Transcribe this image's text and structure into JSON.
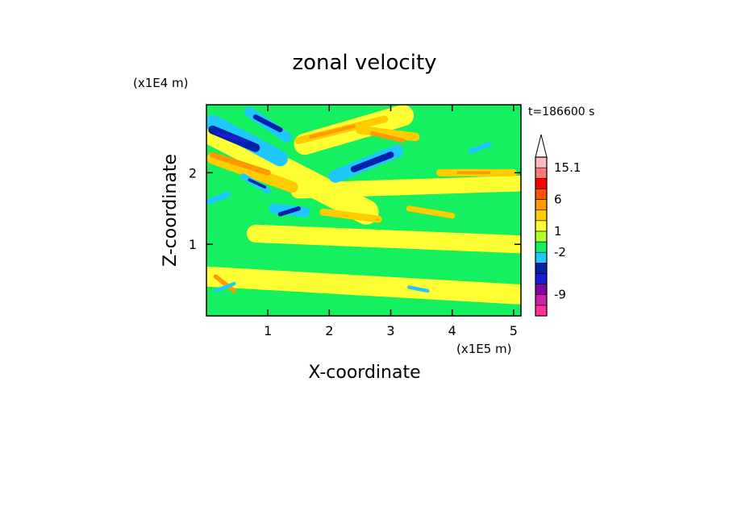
{
  "chart_data": {
    "type": "heatmap",
    "title": "zonal velocity",
    "xlabel": "X-coordinate",
    "ylabel": "Z-coordinate",
    "x_unit": "(x1E5 m)",
    "y_unit": "(x1E4 m)",
    "time_label": "t=186600 s",
    "xlim": [
      0,
      5.12
    ],
    "ylim": [
      0,
      2.95
    ],
    "x_ticks": [
      "1",
      "2",
      "3",
      "4",
      "5"
    ],
    "y_ticks": [
      "1",
      "2"
    ],
    "x_tick_values": [
      1,
      2,
      3,
      4,
      5
    ],
    "y_tick_values": [
      1,
      2
    ],
    "colorbar": {
      "labels": [
        "15.1",
        "6",
        "1",
        "-2",
        "-9"
      ],
      "levels": [
        {
          "color": "#ff3399"
        },
        {
          "color": "#cc22aa"
        },
        {
          "color": "#880099"
        },
        {
          "color": "#1b1bd6"
        },
        {
          "color": "#0022aa"
        },
        {
          "color": "#1ec8ff"
        },
        {
          "color": "#15f060"
        },
        {
          "color": "#b4ff30"
        },
        {
          "color": "#ffff33"
        },
        {
          "color": "#ffcc00"
        },
        {
          "color": "#ff9900"
        },
        {
          "color": "#ff5500"
        },
        {
          "color": "#ff0000"
        },
        {
          "color": "#ff7777"
        },
        {
          "color": "#ffbbbb"
        }
      ]
    },
    "field": {
      "background_color": "#15f060",
      "features": [
        {
          "kind": "band",
          "color": "#ffff33",
          "x0": 0.0,
          "z0": 0.55,
          "x1": 5.1,
          "z1": 0.3,
          "width": 0.28
        },
        {
          "kind": "band",
          "color": "#ffff33",
          "x0": 0.8,
          "z0": 1.15,
          "x1": 5.1,
          "z1": 1.0,
          "width": 0.25
        },
        {
          "kind": "band",
          "color": "#ffff33",
          "x0": 1.5,
          "z0": 1.75,
          "x1": 5.1,
          "z1": 1.85,
          "width": 0.22
        },
        {
          "kind": "band",
          "color": "#ffff33",
          "x0": 0.0,
          "z0": 2.6,
          "x1": 2.6,
          "z1": 1.45,
          "width": 0.35
        },
        {
          "kind": "band",
          "color": "#ffff33",
          "x0": 1.6,
          "z0": 2.4,
          "x1": 3.2,
          "z1": 2.8,
          "width": 0.3
        },
        {
          "kind": "band",
          "color": "#ffcc00",
          "x0": 0.1,
          "z0": 2.2,
          "x1": 1.4,
          "z1": 1.8,
          "width": 0.16
        },
        {
          "kind": "band",
          "color": "#ff9900",
          "x0": 0.1,
          "z0": 2.25,
          "x1": 1.0,
          "z1": 2.0,
          "width": 0.08
        },
        {
          "kind": "band",
          "color": "#ffcc00",
          "x0": 1.5,
          "z0": 2.45,
          "x1": 2.9,
          "z1": 2.75,
          "width": 0.1
        },
        {
          "kind": "band",
          "color": "#ff9900",
          "x0": 1.7,
          "z0": 2.5,
          "x1": 2.4,
          "z1": 2.65,
          "width": 0.05
        },
        {
          "kind": "band",
          "color": "#ffcc00",
          "x0": 2.5,
          "z0": 2.6,
          "x1": 3.4,
          "z1": 2.5,
          "width": 0.12
        },
        {
          "kind": "band",
          "color": "#ff9900",
          "x0": 2.7,
          "z0": 2.55,
          "x1": 3.2,
          "z1": 2.45,
          "width": 0.06
        },
        {
          "kind": "band",
          "color": "#ffcc00",
          "x0": 1.9,
          "z0": 1.45,
          "x1": 2.8,
          "z1": 1.35,
          "width": 0.1
        },
        {
          "kind": "band",
          "color": "#ffcc00",
          "x0": 3.3,
          "z0": 1.5,
          "x1": 4.0,
          "z1": 1.4,
          "width": 0.08
        },
        {
          "kind": "band",
          "color": "#ffcc00",
          "x0": 3.8,
          "z0": 2.0,
          "x1": 5.0,
          "z1": 2.0,
          "width": 0.1
        },
        {
          "kind": "band",
          "color": "#ff9900",
          "x0": 4.1,
          "z0": 2.0,
          "x1": 4.6,
          "z1": 2.0,
          "width": 0.04
        },
        {
          "kind": "band",
          "color": "#ff9900",
          "x0": 0.15,
          "z0": 0.55,
          "x1": 0.45,
          "z1": 0.35,
          "width": 0.06
        },
        {
          "kind": "band",
          "color": "#1ec8ff",
          "x0": 0.1,
          "z0": 2.7,
          "x1": 1.2,
          "z1": 2.2,
          "width": 0.22
        },
        {
          "kind": "band",
          "color": "#0022aa",
          "x0": 0.1,
          "z0": 2.6,
          "x1": 0.8,
          "z1": 2.35,
          "width": 0.12
        },
        {
          "kind": "band",
          "color": "#1b1bd6",
          "x0": 0.2,
          "z0": 2.55,
          "x1": 0.6,
          "z1": 2.45,
          "width": 0.05
        },
        {
          "kind": "band",
          "color": "#1ec8ff",
          "x0": 0.7,
          "z0": 2.85,
          "x1": 1.3,
          "z1": 2.5,
          "width": 0.14
        },
        {
          "kind": "band",
          "color": "#0022aa",
          "x0": 0.8,
          "z0": 2.78,
          "x1": 1.2,
          "z1": 2.6,
          "width": 0.07
        },
        {
          "kind": "band",
          "color": "#1ec8ff",
          "x0": 2.1,
          "z0": 1.95,
          "x1": 3.1,
          "z1": 2.3,
          "width": 0.18
        },
        {
          "kind": "band",
          "color": "#0022aa",
          "x0": 2.4,
          "z0": 2.05,
          "x1": 3.0,
          "z1": 2.25,
          "width": 0.09
        },
        {
          "kind": "band",
          "color": "#1ec8ff",
          "x0": 1.1,
          "z0": 1.5,
          "x1": 1.6,
          "z1": 1.45,
          "width": 0.14
        },
        {
          "kind": "band",
          "color": "#0022aa",
          "x0": 1.2,
          "z0": 1.42,
          "x1": 1.5,
          "z1": 1.5,
          "width": 0.06
        },
        {
          "kind": "band",
          "color": "#1ec8ff",
          "x0": 0.6,
          "z0": 1.95,
          "x1": 1.0,
          "z1": 1.75,
          "width": 0.08
        },
        {
          "kind": "band",
          "color": "#0022aa",
          "x0": 0.7,
          "z0": 1.9,
          "x1": 0.95,
          "z1": 1.8,
          "width": 0.04
        },
        {
          "kind": "band",
          "color": "#1ec8ff",
          "x0": 0.05,
          "z0": 1.6,
          "x1": 0.35,
          "z1": 1.7,
          "width": 0.08
        },
        {
          "kind": "band",
          "color": "#1ec8ff",
          "x0": 4.3,
          "z0": 2.3,
          "x1": 4.6,
          "z1": 2.4,
          "width": 0.07
        },
        {
          "kind": "band",
          "color": "#1ec8ff",
          "x0": 3.3,
          "z0": 0.4,
          "x1": 3.6,
          "z1": 0.35,
          "width": 0.05
        },
        {
          "kind": "band",
          "color": "#1ec8ff",
          "x0": 0.15,
          "z0": 0.35,
          "x1": 0.45,
          "z1": 0.45,
          "width": 0.05
        },
        {
          "kind": "band",
          "color": "#15f060",
          "x0": 0.0,
          "z0": 0.1,
          "x1": 5.1,
          "z1": 0.1,
          "width": 0.12
        },
        {
          "kind": "band",
          "color": "#15f060",
          "x0": 3.0,
          "z0": 0.75,
          "x1": 5.1,
          "z1": 0.75,
          "width": 0.18
        }
      ]
    }
  }
}
